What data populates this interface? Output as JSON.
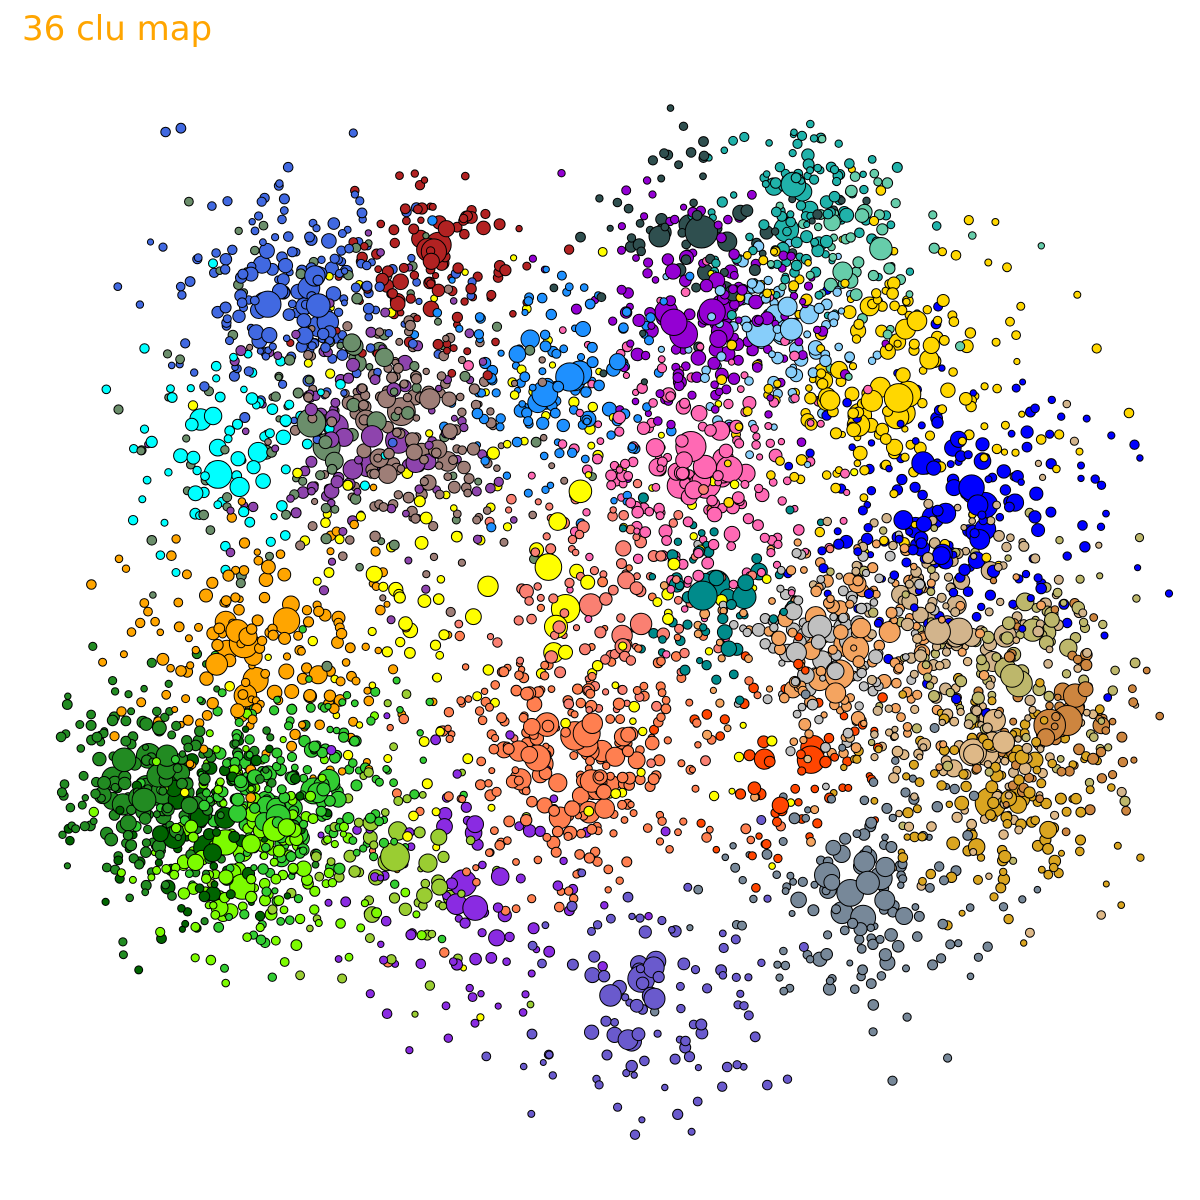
{
  "title": "36 clu map",
  "clusters": [
    {
      "color": "#4169e1"
    },
    {
      "color": "#b22222"
    },
    {
      "color": "#9e7e77"
    },
    {
      "color": "#8e44ad"
    },
    {
      "color": "#00ffff"
    },
    {
      "color": "#6b8e6b"
    },
    {
      "color": "#1e90ff"
    },
    {
      "color": "#9400d3"
    },
    {
      "color": "#ff69b4"
    },
    {
      "color": "#87cefa"
    },
    {
      "color": "#20b2aa"
    },
    {
      "color": "#ffd700"
    },
    {
      "color": "#0000ff"
    },
    {
      "color": "#f4a460"
    },
    {
      "color": "#c0c0c0"
    },
    {
      "color": "#d2b48c"
    },
    {
      "color": "#daa520"
    },
    {
      "color": "#bdb76b"
    },
    {
      "color": "#778899"
    },
    {
      "color": "#ff4500"
    },
    {
      "color": "#ff7f50"
    },
    {
      "color": "#fa8072"
    },
    {
      "color": "#ffff00"
    },
    {
      "color": "#ffa500"
    },
    {
      "color": "#228b22"
    },
    {
      "color": "#32cd32"
    },
    {
      "color": "#7cfc00"
    },
    {
      "color": "#6a5acd"
    },
    {
      "color": "#8a2be2"
    },
    {
      "color": "#9acd32"
    },
    {
      "color": "#cd853f"
    },
    {
      "color": "#2f4f4f"
    },
    {
      "color": "#66cdaa"
    },
    {
      "color": "#008b8b"
    },
    {
      "color": "#006400"
    },
    {
      "color": "#deb887"
    }
  ]
}
